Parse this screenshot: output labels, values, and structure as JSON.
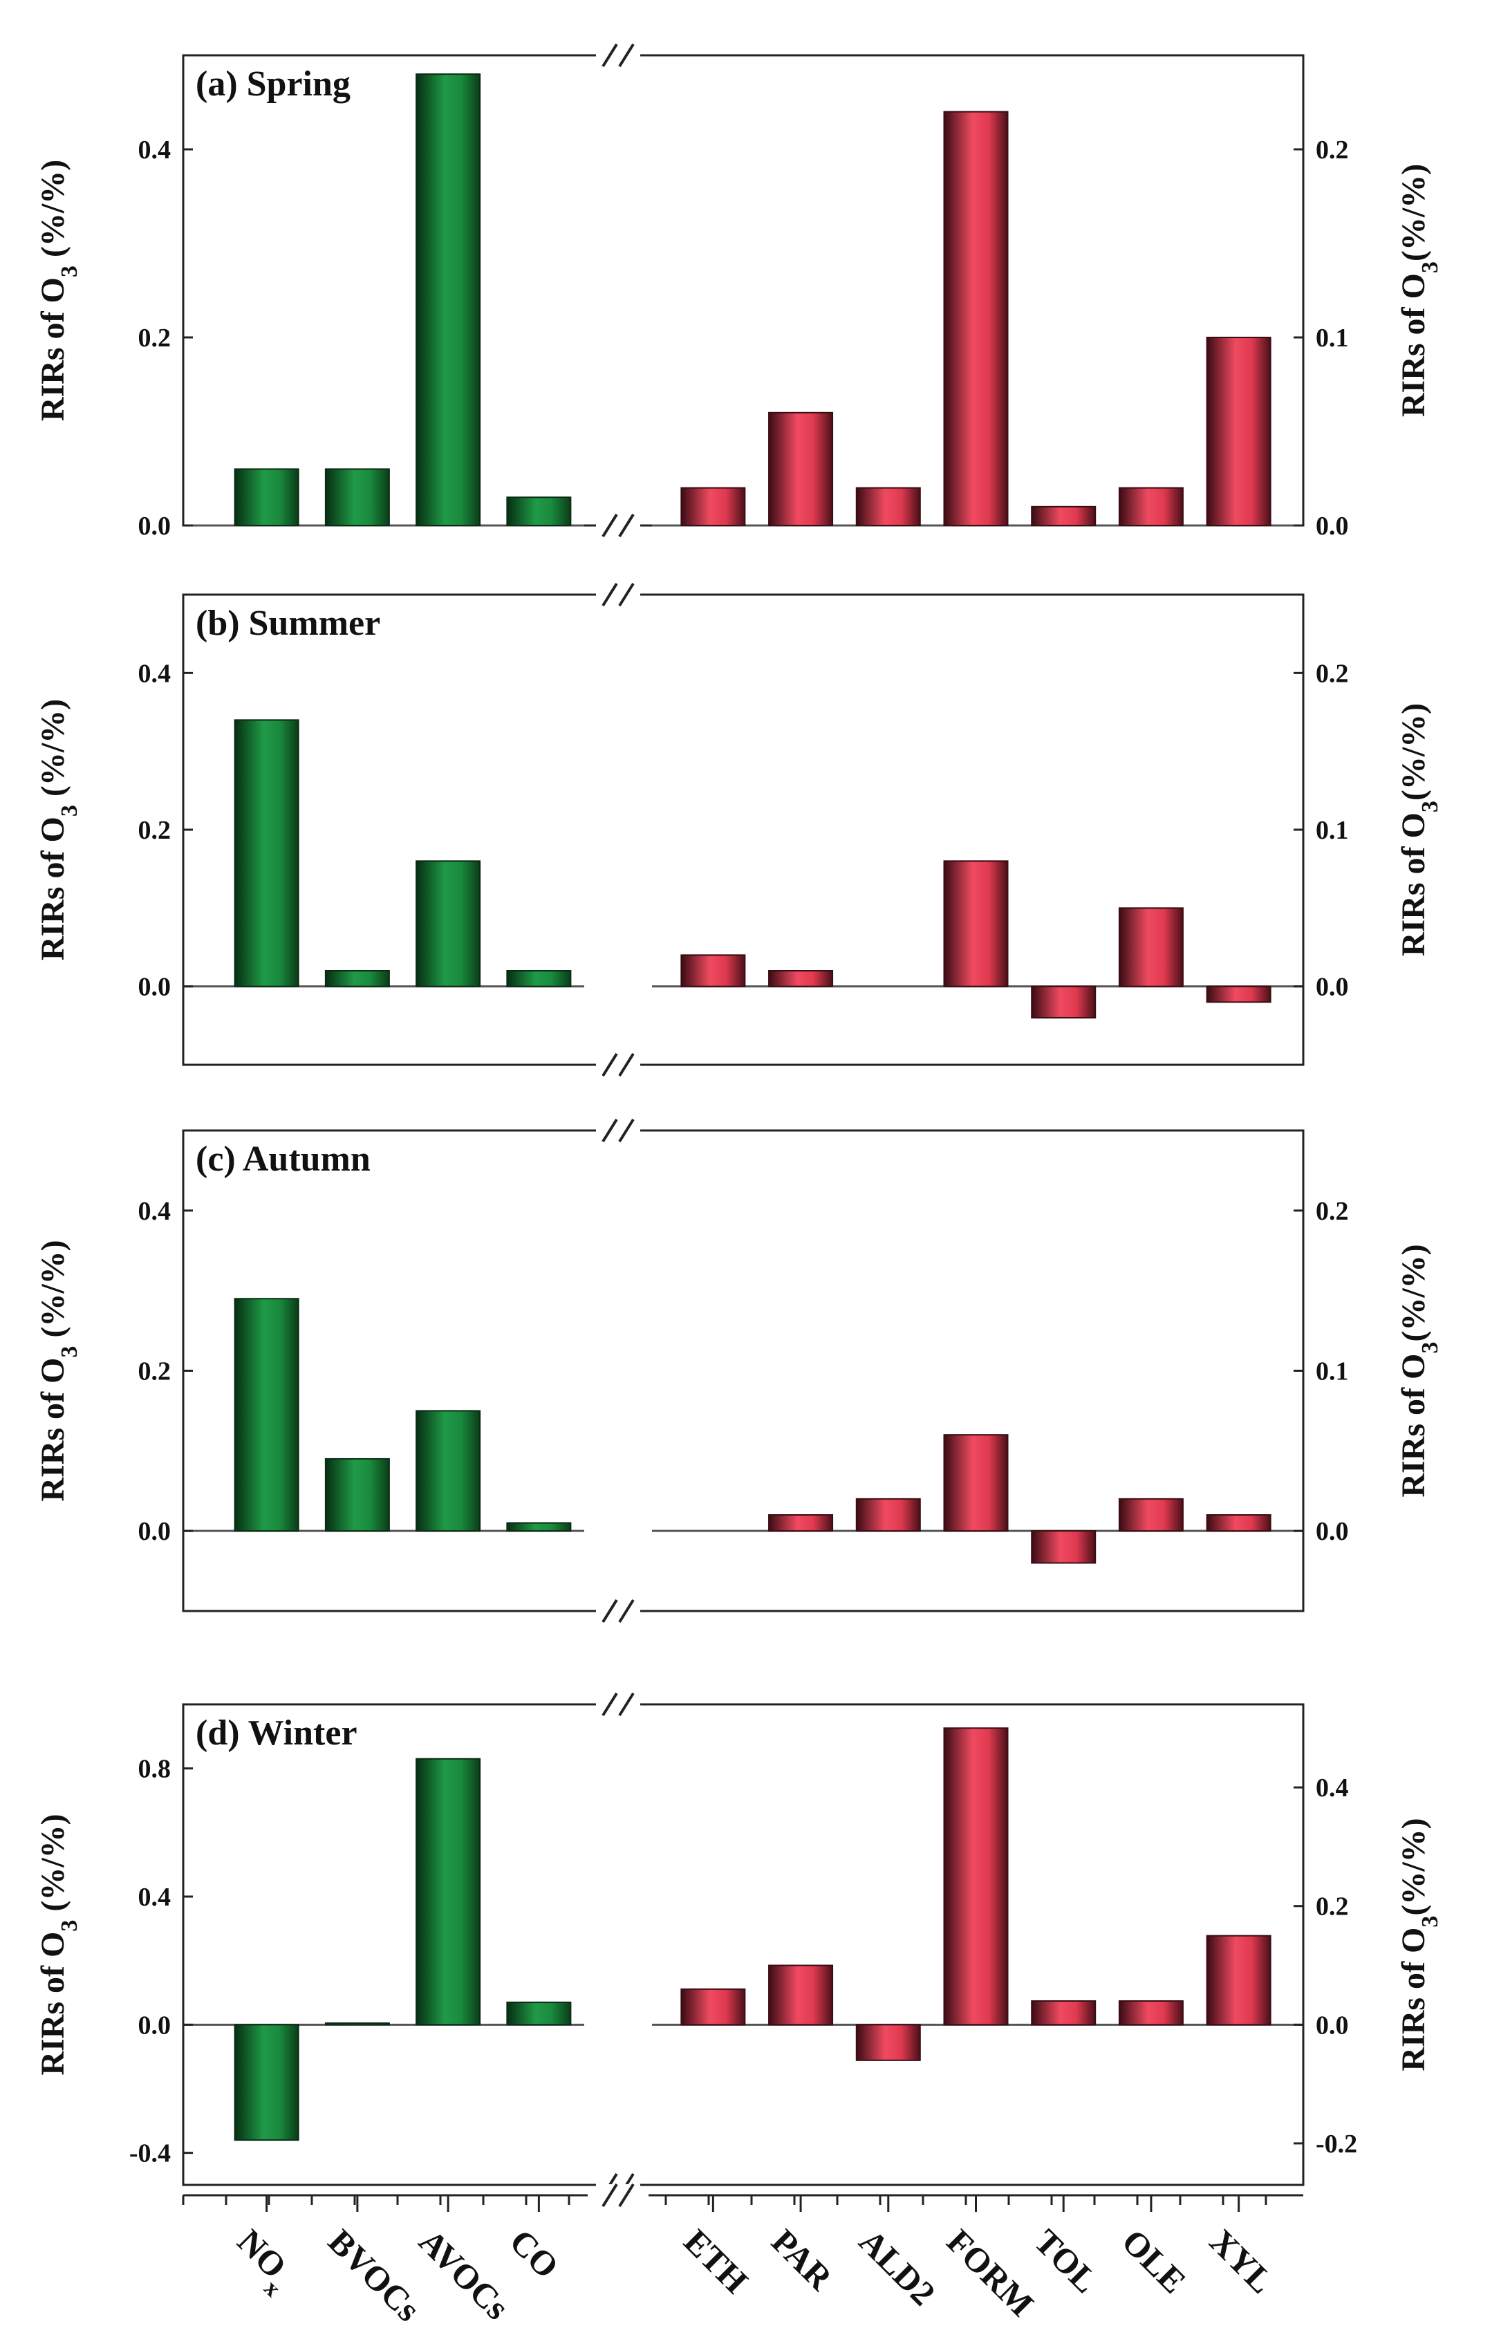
{
  "figure": {
    "colors": {
      "left_bar": "#1a8a3e",
      "right_bar": "#e03a50",
      "frame": "#222222"
    }
  },
  "chart_data": [
    {
      "type": "bar",
      "title": "(a) Spring",
      "ylabel_left": "RIRs of O3 (%/%)",
      "ylabel_right": "RIRs of O3(%/%)",
      "left": {
        "categories": [
          "NOx",
          "BVOCs",
          "AVOCs",
          "CO"
        ],
        "values": [
          0.06,
          0.06,
          0.48,
          0.03
        ],
        "ylim": [
          0,
          0.5
        ],
        "ticks": [
          "0.0",
          "0.2",
          "0.4"
        ]
      },
      "right": {
        "categories": [
          "ETH",
          "PAR",
          "ALD2",
          "FORM",
          "TOL",
          "OLE",
          "XYL"
        ],
        "values": [
          0.02,
          0.06,
          0.02,
          0.22,
          0.01,
          0.02,
          0.1
        ],
        "ylim": [
          0,
          0.25
        ],
        "ticks": [
          "0.0",
          "0.1",
          "0.2"
        ]
      }
    },
    {
      "type": "bar",
      "title": "(b) Summer",
      "ylabel_left": "RIRs of O3 (%/%)",
      "ylabel_right": "RIRs of O3(%/%)",
      "left": {
        "categories": [
          "NOx",
          "BVOCs",
          "AVOCs",
          "CO"
        ],
        "values": [
          0.34,
          0.02,
          0.16,
          0.02
        ],
        "ylim": [
          -0.1,
          0.5
        ],
        "ticks": [
          "0.0",
          "0.2",
          "0.4"
        ]
      },
      "right": {
        "categories": [
          "ETH",
          "PAR",
          "ALD2",
          "FORM",
          "TOL",
          "OLE",
          "XYL"
        ],
        "values": [
          0.02,
          0.01,
          0.0,
          0.08,
          -0.02,
          0.05,
          -0.01
        ],
        "ylim": [
          -0.05,
          0.25
        ],
        "ticks": [
          "0.0",
          "0.1",
          "0.2"
        ]
      }
    },
    {
      "type": "bar",
      "title": "(c) Autumn",
      "ylabel_left": "RIRs of O3 (%/%)",
      "ylabel_right": "RIRs of O3(%/%)",
      "left": {
        "categories": [
          "NOx",
          "BVOCs",
          "AVOCs",
          "CO"
        ],
        "values": [
          0.29,
          0.09,
          0.15,
          0.01
        ],
        "ylim": [
          -0.1,
          0.5
        ],
        "ticks": [
          "0.0",
          "0.2",
          "0.4"
        ]
      },
      "right": {
        "categories": [
          "ETH",
          "PAR",
          "ALD2",
          "FORM",
          "TOL",
          "OLE",
          "XYL"
        ],
        "values": [
          0.0,
          0.01,
          0.02,
          0.06,
          -0.02,
          0.02,
          0.01
        ],
        "ylim": [
          -0.05,
          0.25
        ],
        "ticks": [
          "0.0",
          "0.1",
          "0.2"
        ]
      }
    },
    {
      "type": "bar",
      "title": "(d) Winter",
      "ylabel_left": "RIRs of O3 (%/%)",
      "ylabel_right": "RIRs of O3(%/%)",
      "left": {
        "categories": [
          "NOx",
          "BVOCs",
          "AVOCs",
          "CO"
        ],
        "values": [
          -0.36,
          0.005,
          0.83,
          0.07
        ],
        "ylim": [
          -0.5,
          1.0
        ],
        "ticks": [
          "-0.4",
          "0.0",
          "0.4",
          "0.8"
        ]
      },
      "right": {
        "categories": [
          "ETH",
          "PAR",
          "ALD2",
          "FORM",
          "TOL",
          "OLE",
          "XYL"
        ],
        "values": [
          0.06,
          0.1,
          -0.06,
          0.5,
          0.04,
          0.04,
          0.15
        ],
        "ylim": [
          -0.27,
          0.54
        ],
        "ticks": [
          "-0.2",
          "0.0",
          "0.2",
          "0.4"
        ]
      }
    }
  ],
  "x_axis": {
    "left_labels": [
      "NOx",
      "BVOCs",
      "AVOCs",
      "CO"
    ],
    "right_labels": [
      "ETH",
      "PAR",
      "ALD2",
      "FORM",
      "TOL",
      "OLE",
      "XYL"
    ]
  }
}
